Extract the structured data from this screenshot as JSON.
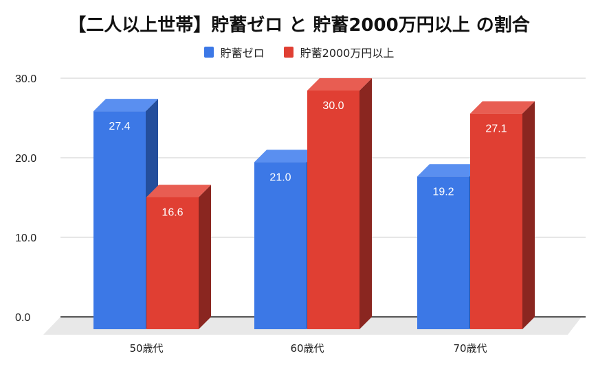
{
  "title": "【二人以上世帯】貯蓄ゼロ と 貯蓄2000万円以上 の割合",
  "legend": [
    {
      "label": "貯蓄ゼロ",
      "color": "#3c78e6"
    },
    {
      "label": "貯蓄2000万円以上",
      "color": "#e03f33"
    }
  ],
  "colors": {
    "blue_front": "#3c78e6",
    "blue_top": "#5a8ff0",
    "blue_side": "#244e9c",
    "red_front": "#e03f33",
    "red_top": "#e85d52",
    "red_side": "#8a2620",
    "grid": "#cccccc",
    "axis": "#555555",
    "floor": "#e8e8e8"
  },
  "chart_data": {
    "type": "bar",
    "title": "【二人以上世帯】貯蓄ゼロ と 貯蓄2000万円以上 の割合",
    "categories": [
      "50歳代",
      "60歳代",
      "70歳代"
    ],
    "series": [
      {
        "name": "貯蓄ゼロ",
        "values": [
          27.4,
          21.0,
          19.2
        ],
        "labels": [
          "27.4",
          "21.0",
          "19.2"
        ]
      },
      {
        "name": "貯蓄2000万円以上",
        "values": [
          16.6,
          30.0,
          27.1
        ],
        "labels": [
          "16.6",
          "30.0",
          "27.1"
        ]
      }
    ],
    "xlabel": "",
    "ylabel": "",
    "ylim": [
      0,
      30
    ],
    "yticks": [
      "0.0",
      "10.0",
      "20.0",
      "30.0"
    ],
    "grid": true,
    "legend_position": "top",
    "style": "3d-column"
  }
}
